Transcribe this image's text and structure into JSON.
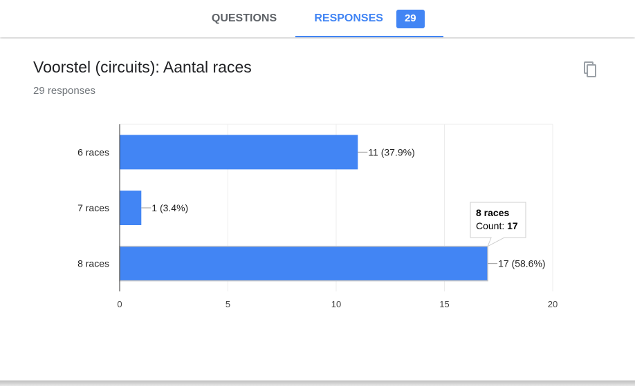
{
  "tabs": {
    "questions_label": "QUESTIONS",
    "responses_label": "RESPONSES",
    "responses_count": "29"
  },
  "question": {
    "title": "Voorstel (circuits): Aantal races",
    "response_count_text": "29 responses"
  },
  "icons": {
    "copy": "copy-icon"
  },
  "colors": {
    "accent": "#4285f4",
    "bar": "#4285f4"
  },
  "chart_data": {
    "type": "bar",
    "orientation": "horizontal",
    "categories": [
      "6 races",
      "7 races",
      "8 races"
    ],
    "values": [
      11,
      1,
      17
    ],
    "data_labels": [
      "11 (37.9%)",
      "1 (3.4%)",
      "17 (58.6%)"
    ],
    "xlim": [
      0,
      20
    ],
    "xticks": [
      "0",
      "5",
      "10",
      "15",
      "20"
    ],
    "grid": true,
    "tooltip": {
      "category": "8 races",
      "count_label": "Count: ",
      "count_value": "17"
    }
  }
}
